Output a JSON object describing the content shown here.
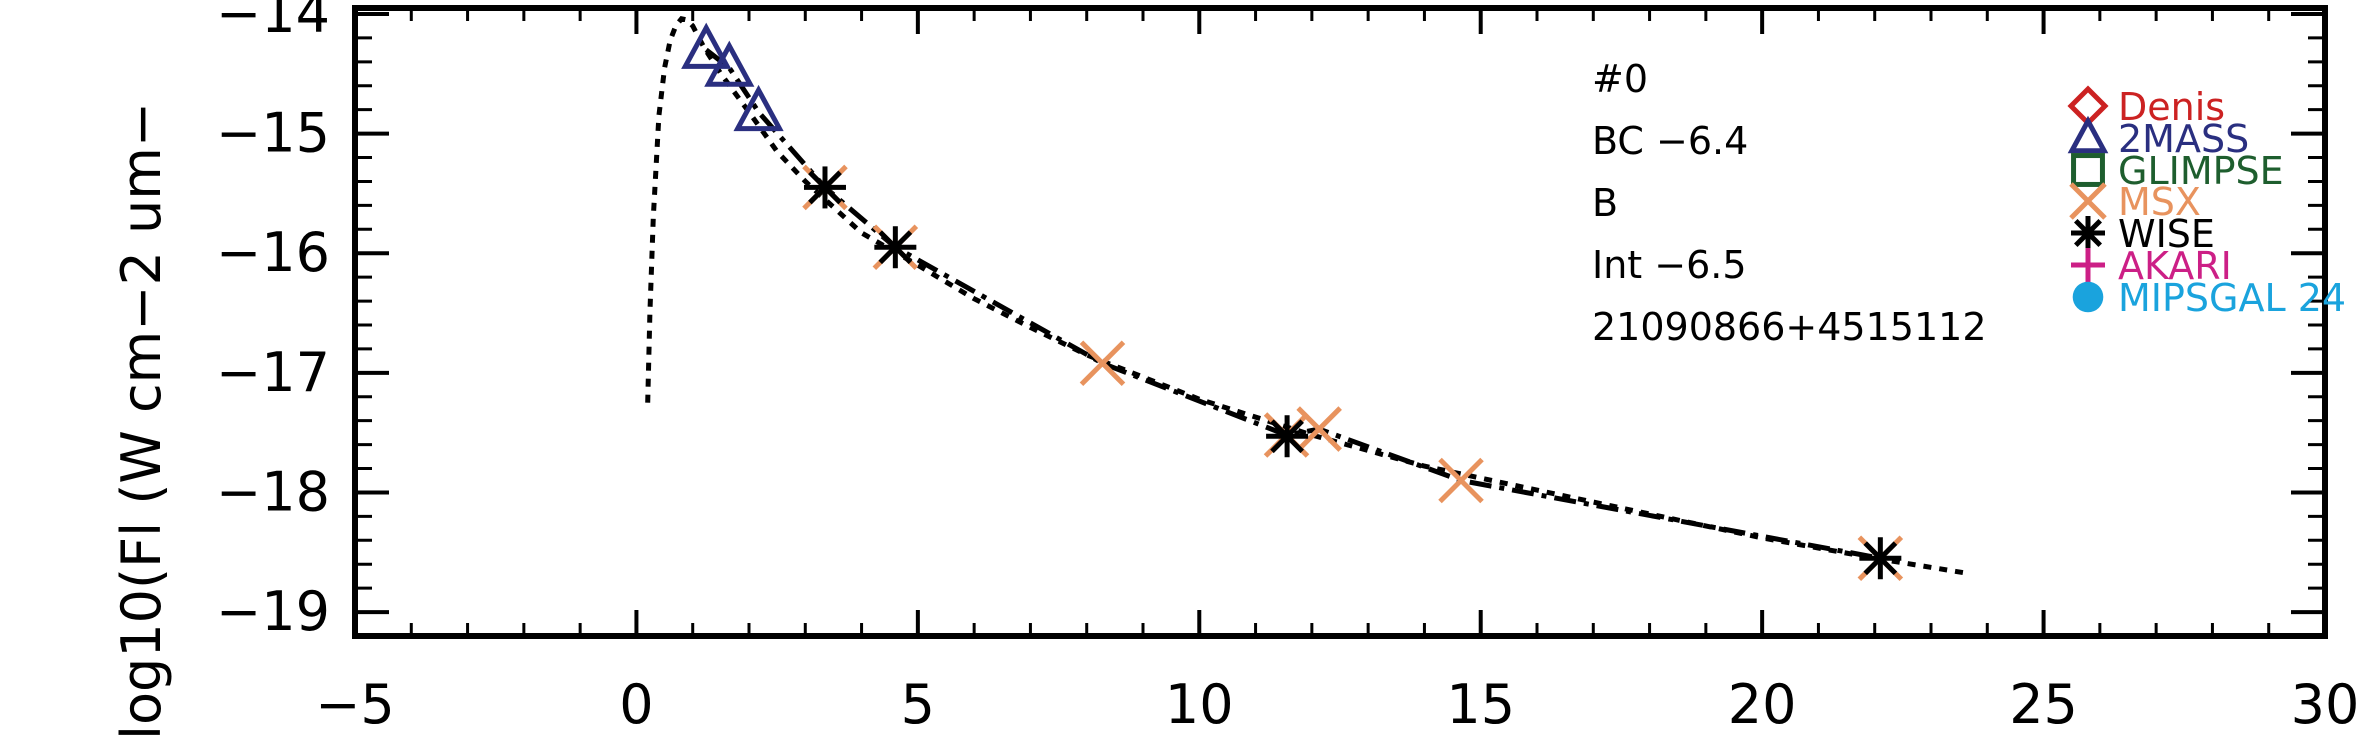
{
  "chart_data": {
    "type": "scatter",
    "title": "",
    "xlabel": "",
    "ylabel": "log10(Fl (W cm−2 um−",
    "xlim": [
      -5,
      30
    ],
    "ylim": [
      -19.2,
      -13.95
    ],
    "x_ticks": [
      -5,
      0,
      5,
      10,
      15,
      20,
      25,
      30
    ],
    "x_tick_labels": [
      "−5",
      "0",
      "5",
      "10",
      "15",
      "20",
      "25",
      "30"
    ],
    "y_ticks": [
      -19,
      -18,
      -17,
      -16,
      -15,
      -14
    ],
    "y_tick_labels": [
      "−19",
      "−18",
      "−17",
      "−16",
      "−15",
      "−14"
    ],
    "annotations": [
      "#0",
      "BC  −6.4",
      "B",
      "Int  −6.5",
      "21090866+4515112"
    ],
    "legend": {
      "position": "top-right",
      "entries": [
        {
          "name": "Denis",
          "marker": "diamond",
          "color": "#cc2222"
        },
        {
          "name": "2MASS",
          "marker": "triangle",
          "color": "#2a2f80"
        },
        {
          "name": "GLIMPSE",
          "marker": "square",
          "color": "#1e5e2e"
        },
        {
          "name": "MSX",
          "marker": "x",
          "color": "#e8935e"
        },
        {
          "name": "WISE",
          "marker": "asterisk",
          "color": "#000000"
        },
        {
          "name": "AKARI",
          "marker": "plus",
          "color": "#cc1f86"
        },
        {
          "name": "MIPSGAL 24",
          "marker": "circle",
          "color": "#1aa3dd"
        }
      ]
    },
    "series": [
      {
        "name": "2MASS",
        "marker": "triangle",
        "color": "#2a2f80",
        "x": [
          1.24,
          1.65,
          2.17
        ],
        "y": [
          -14.3,
          -14.45,
          -14.82
        ]
      },
      {
        "name": "MSX",
        "marker": "x",
        "color": "#e8935e",
        "x": [
          3.35,
          4.6,
          8.28,
          11.55,
          12.13,
          14.65,
          22.1
        ],
        "y": [
          -15.45,
          -15.95,
          -16.92,
          -17.52,
          -17.47,
          -17.9,
          -18.55
        ]
      },
      {
        "name": "WISE",
        "marker": "asterisk",
        "color": "#000000",
        "x": [
          3.35,
          4.6,
          11.56,
          22.1
        ],
        "y": [
          -15.45,
          -15.95,
          -17.53,
          -18.55
        ]
      }
    ],
    "curves": [
      {
        "style": "dotted",
        "color": "#000000",
        "x": [
          0.2,
          0.24,
          0.3,
          0.4,
          0.5,
          0.6,
          0.7,
          0.8,
          0.9,
          1.0,
          1.2,
          1.5,
          2.0,
          2.5,
          3.0,
          4.0,
          5.0,
          6.0,
          7.0,
          8.0,
          10.0,
          12.0,
          14.0,
          16.0,
          18.0,
          20.0,
          22.0,
          23.7
        ],
        "y": [
          -17.25,
          -16.5,
          -15.7,
          -14.85,
          -14.45,
          -14.22,
          -14.1,
          -14.04,
          -14.05,
          -14.1,
          -14.28,
          -14.5,
          -14.82,
          -15.15,
          -15.4,
          -15.83,
          -16.1,
          -16.38,
          -16.62,
          -16.85,
          -17.22,
          -17.52,
          -17.78,
          -17.98,
          -18.18,
          -18.38,
          -18.55,
          -18.68
        ]
      },
      {
        "style": "dashdot",
        "color": "#000000",
        "x": [
          1.24,
          1.65,
          2.17,
          3.35,
          4.6,
          8.28,
          11.55,
          12.13,
          14.65,
          22.1
        ],
        "y": [
          -14.3,
          -14.45,
          -14.82,
          -15.45,
          -15.95,
          -16.92,
          -17.52,
          -17.47,
          -17.9,
          -18.55
        ]
      }
    ]
  }
}
